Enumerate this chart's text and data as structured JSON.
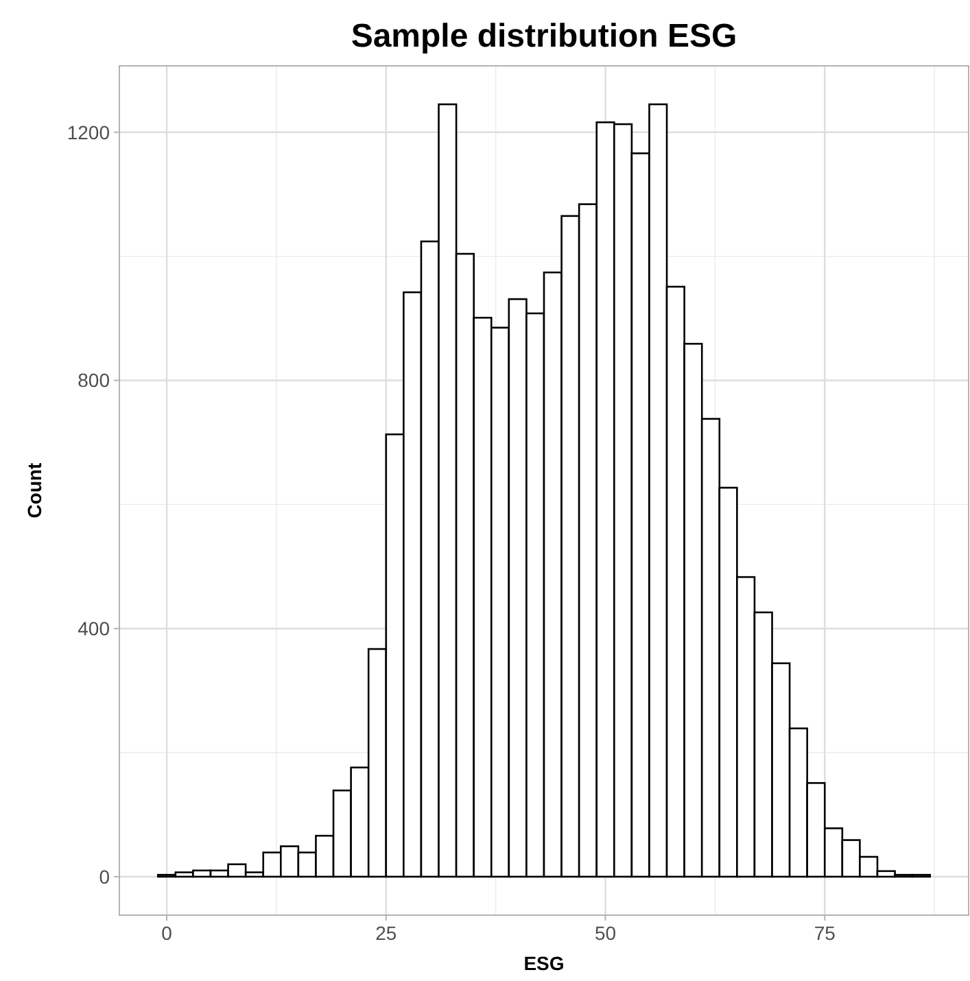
{
  "chart_data": {
    "type": "histogram",
    "title": "Sample distribution ESG",
    "xlabel": "ESG",
    "ylabel": "Count",
    "bins": [
      -1,
      1,
      3,
      5,
      7,
      9,
      11,
      13,
      15,
      17,
      19,
      21,
      23,
      25,
      27,
      29,
      31,
      33,
      35,
      37,
      39,
      41,
      43,
      45,
      47,
      49,
      51,
      53,
      55,
      57,
      59,
      61,
      63,
      65,
      67,
      69,
      71,
      73,
      75,
      77,
      79,
      81,
      83,
      85,
      87
    ],
    "values": [
      3,
      7,
      10,
      10,
      20,
      7,
      39,
      49,
      39,
      66,
      139,
      176,
      367,
      713,
      942,
      1024,
      1245,
      1004,
      901,
      885,
      931,
      908,
      974,
      1065,
      1084,
      1216,
      1213,
      1166,
      1245,
      951,
      859,
      738,
      627,
      483,
      426,
      344,
      239,
      151,
      78,
      59,
      32,
      9,
      3,
      3
    ],
    "color": "#ffffff",
    "xlim": [
      -5.4,
      91.4
    ],
    "xticks": [
      0,
      25,
      50,
      75
    ],
    "ylim": [
      -62,
      1307
    ],
    "yticks": [
      0,
      400,
      800,
      1200
    ],
    "grid": true
  }
}
